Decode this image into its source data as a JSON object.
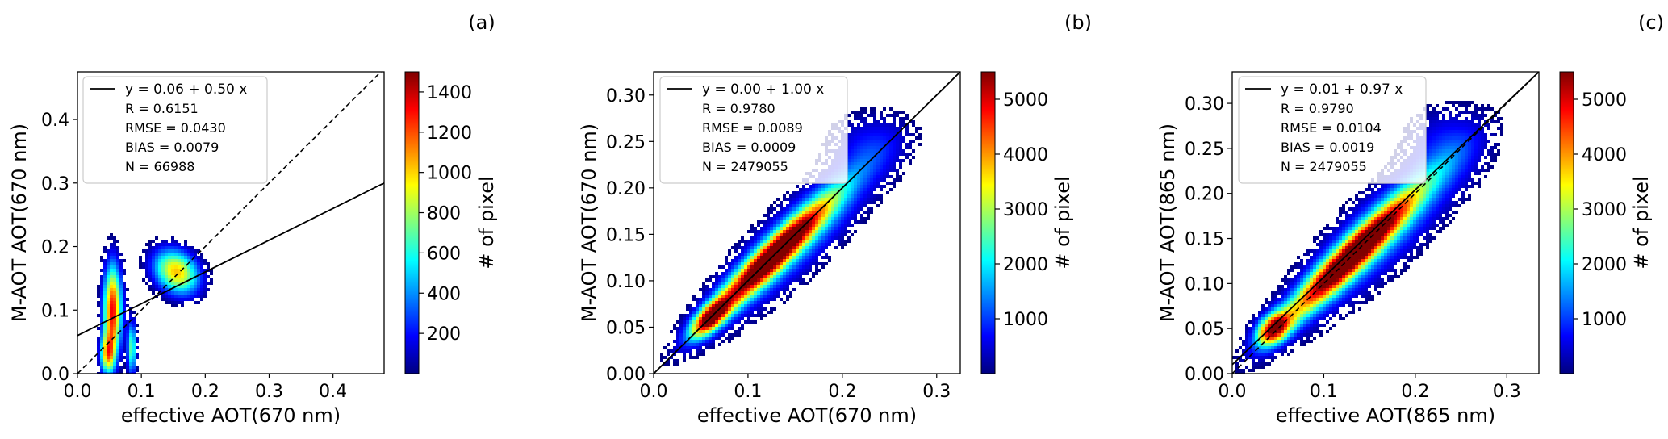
{
  "colorbar_stops": [
    "#00007f",
    "#0000ff",
    "#007fff",
    "#00ffff",
    "#7fff7f",
    "#ffff00",
    "#ff7f00",
    "#ff0000",
    "#7f0000"
  ],
  "line_colors": {
    "fit": "#000000",
    "one_to_one": "#000000"
  },
  "chart_data": [
    {
      "type": "heatmap",
      "panel_label": "(a)",
      "xlabel": "effective AOT(670 nm)",
      "ylabel": "M-AOT AOT(670 nm)",
      "xlim": [
        0,
        0.48
      ],
      "ylim": [
        0,
        0.475
      ],
      "xticks": [
        0.0,
        0.1,
        0.2,
        0.3,
        0.4
      ],
      "xtick_labels": [
        "0.0",
        "0.1",
        "0.2",
        "0.3",
        "0.4"
      ],
      "yticks": [
        0.0,
        0.1,
        0.2,
        0.3,
        0.4
      ],
      "ytick_labels": [
        "0.0",
        "0.1",
        "0.2",
        "0.3",
        "0.4"
      ],
      "fit": {
        "intercept": 0.06,
        "slope": 0.5
      },
      "one_to_one": true,
      "legend": {
        "fit_label": "y =  0.06 + 0.50 x",
        "lines": [
          "R    = 0.6151",
          "RMSE =  0.0430",
          "BIAS =  0.0079",
          "N    = 66988"
        ]
      },
      "colorbar": {
        "label": "# of pixel",
        "max": 1500,
        "ticks": [
          200,
          400,
          600,
          800,
          1000,
          1200,
          1400
        ],
        "tick_labels": [
          "200",
          "400",
          "600",
          "800",
          "1000",
          "1200",
          "1400"
        ]
      },
      "density_blobs": [
        {
          "x": 0.055,
          "y": 0.1,
          "sx": 0.01,
          "sy": 0.05,
          "w": 0.9,
          "angle": 0
        },
        {
          "x": 0.047,
          "y": 0.03,
          "sx": 0.008,
          "sy": 0.022,
          "w": 0.6,
          "angle": 0
        },
        {
          "x": 0.085,
          "y": 0.04,
          "sx": 0.005,
          "sy": 0.03,
          "w": 0.5,
          "angle": 0
        },
        {
          "x": 0.155,
          "y": 0.16,
          "sx": 0.022,
          "sy": 0.028,
          "w": 0.7,
          "angle": 0.8
        }
      ]
    },
    {
      "type": "heatmap",
      "panel_label": "(b)",
      "xlabel": "effective AOT(670 nm)",
      "ylabel": "M-AOT AOT(670 nm)",
      "xlim": [
        0,
        0.325
      ],
      "ylim": [
        0,
        0.325
      ],
      "xticks": [
        0.0,
        0.1,
        0.2,
        0.3
      ],
      "xtick_labels": [
        "0.0",
        "0.1",
        "0.2",
        "0.3"
      ],
      "yticks": [
        0.0,
        0.05,
        0.1,
        0.15,
        0.2,
        0.25,
        0.3
      ],
      "ytick_labels": [
        "0.00",
        "0.05",
        "0.10",
        "0.15",
        "0.20",
        "0.25",
        "0.30"
      ],
      "fit": {
        "intercept": 0.0,
        "slope": 1.0
      },
      "one_to_one": true,
      "legend": {
        "fit_label": "y =  0.00 + 1.00 x",
        "lines": [
          "R    = 0.9780",
          "RMSE =  0.0089",
          "BIAS =  0.0009",
          "N    = 2479055"
        ]
      },
      "colorbar": {
        "label": "# of pixel",
        "max": 5500,
        "ticks": [
          1000,
          2000,
          3000,
          4000,
          5000
        ],
        "tick_labels": [
          "1000",
          "2000",
          "3000",
          "4000",
          "5000"
        ]
      },
      "density_blobs": [
        {
          "x": 0.125,
          "y": 0.125,
          "sx": 0.06,
          "sy": 0.01,
          "w": 1.0,
          "angle": 0.785
        },
        {
          "x": 0.06,
          "y": 0.06,
          "sx": 0.018,
          "sy": 0.008,
          "w": 0.8,
          "angle": 0.785
        },
        {
          "x": 0.15,
          "y": 0.145,
          "sx": 0.085,
          "sy": 0.022,
          "w": 0.35,
          "angle": 0.785
        },
        {
          "x": 0.225,
          "y": 0.25,
          "sx": 0.03,
          "sy": 0.025,
          "w": 0.12,
          "angle": 0
        }
      ]
    },
    {
      "type": "heatmap",
      "panel_label": "(c)",
      "xlabel": "effective AOT(865 nm)",
      "ylabel": "M-AOT AOT(865 nm)",
      "xlim": [
        0,
        0.335
      ],
      "ylim": [
        0,
        0.335
      ],
      "xticks": [
        0.0,
        0.1,
        0.2,
        0.3
      ],
      "xtick_labels": [
        "0.0",
        "0.1",
        "0.2",
        "0.3"
      ],
      "yticks": [
        0.0,
        0.05,
        0.1,
        0.15,
        0.2,
        0.25,
        0.3
      ],
      "ytick_labels": [
        "0.00",
        "0.05",
        "0.10",
        "0.15",
        "0.20",
        "0.25",
        "0.30"
      ],
      "fit": {
        "intercept": 0.01,
        "slope": 0.97
      },
      "one_to_one": true,
      "legend": {
        "fit_label": "y =  0.01 + 0.97 x",
        "lines": [
          "R    = 0.9790",
          "RMSE =  0.0104",
          "BIAS =  0.0019",
          "N    = 2479055"
        ]
      },
      "colorbar": {
        "label": "# of pixel",
        "max": 5500,
        "ticks": [
          1000,
          2000,
          3000,
          4000,
          5000
        ],
        "tick_labels": [
          "1000",
          "2000",
          "3000",
          "4000",
          "5000"
        ]
      },
      "density_blobs": [
        {
          "x": 0.13,
          "y": 0.13,
          "sx": 0.07,
          "sy": 0.011,
          "w": 1.0,
          "angle": 0.785
        },
        {
          "x": 0.045,
          "y": 0.05,
          "sx": 0.015,
          "sy": 0.01,
          "w": 0.8,
          "angle": 0.785
        },
        {
          "x": 0.16,
          "y": 0.155,
          "sx": 0.09,
          "sy": 0.025,
          "w": 0.35,
          "angle": 0.785
        },
        {
          "x": 0.23,
          "y": 0.26,
          "sx": 0.03,
          "sy": 0.03,
          "w": 0.12,
          "angle": 0
        }
      ]
    }
  ]
}
